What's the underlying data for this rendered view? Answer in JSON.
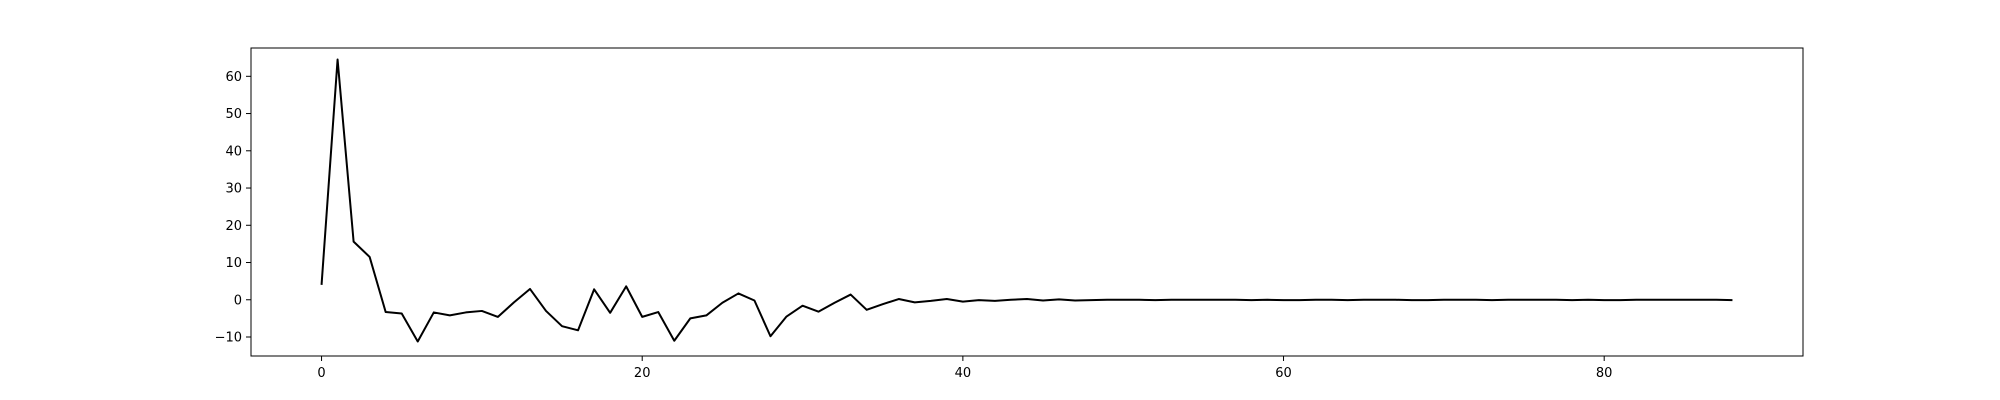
{
  "chart_data": {
    "type": "line",
    "title": "",
    "xlabel": "",
    "ylabel": "",
    "xlim": [
      -4.4,
      92.4
    ],
    "ylim": [
      -15.1,
      67.6
    ],
    "grid": false,
    "legend": "none",
    "x_ticks": [
      0,
      20,
      40,
      60,
      80
    ],
    "x_tick_labels": [
      "0",
      "20",
      "40",
      "60",
      "80"
    ],
    "y_ticks": [
      -10,
      0,
      10,
      20,
      30,
      40,
      50,
      60
    ],
    "y_tick_labels": [
      "−10",
      "0",
      "10",
      "20",
      "30",
      "40",
      "50",
      "60"
    ],
    "series": [
      {
        "color": "#000000",
        "x": [
          0,
          1,
          2,
          3,
          4,
          5,
          6,
          7,
          8,
          9,
          10,
          11,
          12,
          13,
          14,
          15,
          16,
          17,
          18,
          19,
          20,
          21,
          22,
          23,
          24,
          25,
          26,
          27,
          28,
          29,
          30,
          31,
          32,
          33,
          34,
          35,
          36,
          37,
          38,
          39,
          40,
          41,
          42,
          43,
          44,
          45,
          46,
          47,
          48,
          49,
          50,
          51,
          52,
          53,
          54,
          55,
          56,
          57,
          58,
          59,
          60,
          61,
          62,
          63,
          64,
          65,
          66,
          67,
          68,
          69,
          70,
          71,
          72,
          73,
          74,
          75,
          76,
          77,
          78,
          79,
          80,
          81,
          82,
          83,
          84,
          85,
          86,
          87,
          88
        ],
        "values": [
          4.0,
          64.5,
          15.6,
          11.5,
          -3.3,
          -3.7,
          -11.2,
          -3.4,
          -4.2,
          -3.4,
          -3.0,
          -4.6,
          -0.7,
          2.9,
          -3.0,
          -7.1,
          -8.2,
          2.8,
          -3.5,
          3.6,
          -4.6,
          -3.3,
          -11.0,
          -5.0,
          -4.2,
          -0.8,
          1.7,
          -0.2,
          -9.8,
          -4.5,
          -1.6,
          -3.2,
          -0.8,
          1.4,
          -2.7,
          -1.2,
          0.2,
          -0.7,
          -0.3,
          0.2,
          -0.5,
          -0.1,
          -0.3,
          0.0,
          0.2,
          -0.2,
          0.1,
          -0.2,
          -0.1,
          0.0,
          0.0,
          0.0,
          -0.1,
          0.0,
          0.0,
          0.0,
          0.0,
          0.0,
          -0.1,
          0.0,
          -0.1,
          -0.1,
          0.0,
          0.0,
          -0.1,
          0.0,
          0.0,
          0.0,
          -0.1,
          -0.1,
          0.0,
          0.0,
          0.0,
          -0.1,
          0.0,
          0.0,
          0.0,
          0.0,
          -0.1,
          0.0,
          -0.1,
          -0.1,
          0.0,
          0.0,
          0.0,
          0.0,
          0.0,
          0.0,
          -0.1
        ]
      }
    ]
  }
}
